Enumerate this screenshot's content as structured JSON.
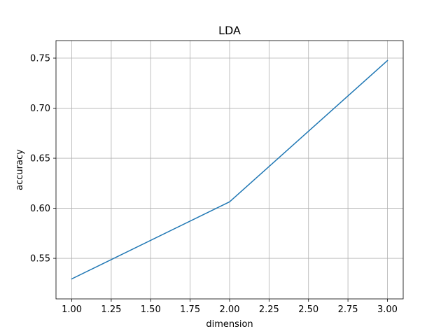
{
  "chart_data": {
    "type": "line",
    "title": "LDA",
    "xlabel": "dimension",
    "ylabel": "accuracy",
    "xlim": [
      0.9,
      3.1
    ],
    "ylim": [
      0.5095,
      0.7675
    ],
    "xticks": [
      1.0,
      1.25,
      1.5,
      1.75,
      2.0,
      2.25,
      2.5,
      2.75,
      3.0
    ],
    "xtick_labels": [
      "1.00",
      "1.25",
      "1.50",
      "1.75",
      "2.00",
      "2.25",
      "2.50",
      "2.75",
      "3.00"
    ],
    "yticks": [
      0.55,
      0.6,
      0.65,
      0.7,
      0.75
    ],
    "ytick_labels": [
      "0.55",
      "0.60",
      "0.65",
      "0.70",
      "0.75"
    ],
    "grid": true,
    "series": [
      {
        "x": [
          1,
          2,
          3
        ],
        "y": [
          0.5295,
          0.6065,
          0.7475
        ],
        "color": "#1f77b4"
      }
    ]
  }
}
